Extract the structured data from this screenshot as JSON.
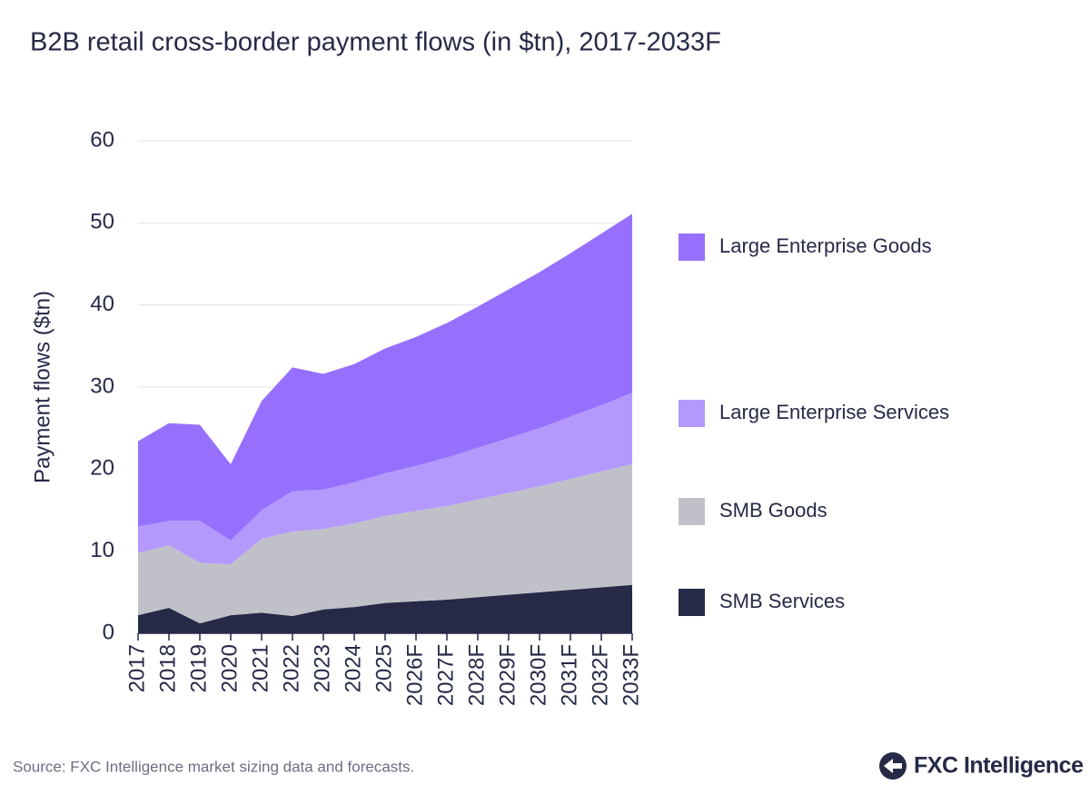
{
  "chart_data": {
    "type": "stacked-area",
    "title": "B2B retail cross-border payment flows (in $tn), 2017-2033F",
    "y_label": "Payment flows ($tn)",
    "source": "Source: FXC Intelligence market sizing data and forecasts.",
    "brand": "FXC Intelligence",
    "categories": [
      "2017",
      "2018",
      "2019",
      "2020",
      "2021",
      "2022",
      "2023",
      "2024",
      "2025",
      "2026F",
      "2027F",
      "2028F",
      "2029F",
      "2030F",
      "2031F",
      "2032F",
      "2033F"
    ],
    "series": [
      {
        "name": "SMB Services",
        "color": "#262a47",
        "values": [
          2.2,
          3.1,
          1.2,
          2.2,
          2.5,
          2.1,
          2.9,
          3.2,
          3.7,
          3.9,
          4.1,
          4.4,
          4.7,
          5.0,
          5.3,
          5.6,
          5.9
        ]
      },
      {
        "name": "SMB Goods",
        "color": "#c0c1c8",
        "values": [
          7.6,
          7.6,
          7.4,
          6.2,
          9.0,
          10.3,
          9.8,
          10.2,
          10.6,
          11.0,
          11.4,
          11.9,
          12.4,
          12.9,
          13.5,
          14.1,
          14.7
        ]
      },
      {
        "name": "Large Enterprise Services",
        "color": "#b399fb",
        "values": [
          3.2,
          3.0,
          5.1,
          2.9,
          3.5,
          4.9,
          4.8,
          5.0,
          5.2,
          5.5,
          5.9,
          6.3,
          6.7,
          7.1,
          7.6,
          8.1,
          8.7
        ]
      },
      {
        "name": "Large Enterprise Goods",
        "color": "#9670fc",
        "values": [
          10.4,
          11.9,
          11.7,
          9.3,
          13.3,
          15.1,
          14.1,
          14.4,
          15.2,
          15.7,
          16.4,
          17.2,
          18.1,
          19.0,
          19.9,
          20.9,
          21.8
        ]
      }
    ],
    "ylim": [
      0,
      60
    ],
    "yticks": [
      0,
      10,
      20,
      30,
      40,
      50,
      60
    ],
    "grid": true
  }
}
